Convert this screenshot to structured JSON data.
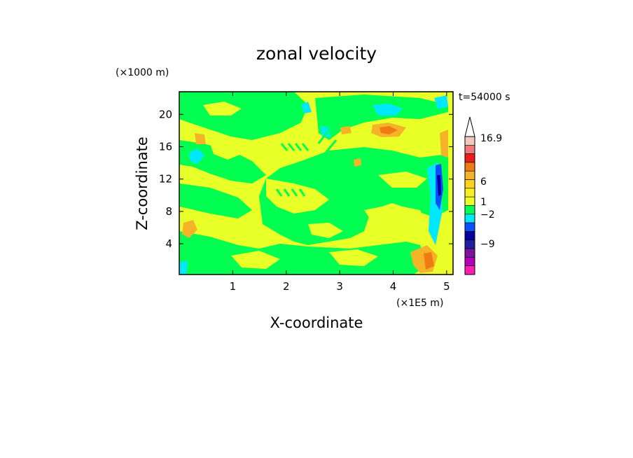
{
  "chart_data": {
    "type": "heatmap",
    "title": "zonal velocity",
    "time_label": "t=54000 s",
    "xlabel": "X-coordinate",
    "ylabel": "Z-coordinate",
    "x_unit": "(×1E5 m)",
    "y_unit": "(×1000 m)",
    "xlim": [
      0,
      5.12
    ],
    "ylim": [
      0.2,
      22.8
    ],
    "x_ticks": [
      1,
      2,
      3,
      4,
      5
    ],
    "y_ticks": [
      4,
      8,
      12,
      16,
      20
    ],
    "colorbar": {
      "labels": [
        {
          "value": 16.9,
          "text": "16.9"
        },
        {
          "value": 6,
          "text": "6"
        },
        {
          "value": 1,
          "text": "1"
        },
        {
          "value": -2,
          "text": "−2"
        },
        {
          "value": -9,
          "text": "−9"
        }
      ],
      "bins": [
        {
          "color": "#f0c8c0"
        },
        {
          "color": "#f07878"
        },
        {
          "color": "#e81e1e"
        },
        {
          "color": "#f07a14"
        },
        {
          "color": "#f5b428"
        },
        {
          "color": "#ffd21e"
        },
        {
          "color": "#f8f020"
        },
        {
          "color": "#e8ff28"
        },
        {
          "color": "#00ff50"
        },
        {
          "color": "#00e8ff"
        },
        {
          "color": "#0a50ff"
        },
        {
          "color": "#0000a0"
        },
        {
          "color": "#2020a0"
        },
        {
          "color": "#7814a0"
        },
        {
          "color": "#b400b4"
        },
        {
          "color": "#ff1eb4"
        }
      ]
    },
    "regions": [
      {
        "level": "v_gt_1",
        "color": "#e8ff28",
        "desc": "background 1 to 6"
      },
      {
        "level": "v_-2_1",
        "color": "#00ff50"
      },
      {
        "level": "v_-4_-2",
        "color": "#00e8ff"
      },
      {
        "level": "v_6_9",
        "color": "#f5b428"
      },
      {
        "level": "v_9_12",
        "color": "#f07a14"
      },
      {
        "level": "v_lt_-6",
        "color": "#0a50ff"
      }
    ]
  }
}
